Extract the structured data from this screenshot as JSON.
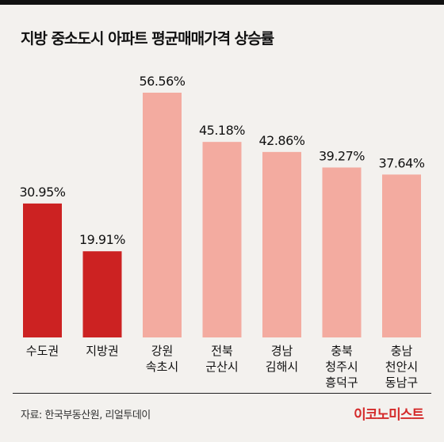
{
  "chart_data": {
    "type": "bar",
    "title": "지방 중소도시 아파트 평균매매가격 상승률",
    "categories": [
      [
        "수도권"
      ],
      [
        "지방권"
      ],
      [
        "강원",
        "속초시"
      ],
      [
        "전북",
        "군산시"
      ],
      [
        "경남",
        "김해시"
      ],
      [
        "충북",
        "청주시",
        "흥덕구"
      ],
      [
        "충남",
        "천안시",
        "동남구"
      ]
    ],
    "values": [
      30.95,
      19.91,
      56.56,
      45.18,
      42.86,
      39.27,
      37.64
    ],
    "value_labels": [
      "30.95%",
      "19.91%",
      "56.56%",
      "45.18%",
      "42.86%",
      "39.27%",
      "37.64%"
    ],
    "unit": "%",
    "ylim": [
      0,
      70
    ],
    "grid": false,
    "colors": {
      "highlight": "#cc2222",
      "normal": "#f3aba0"
    },
    "bar_color_keys": [
      "highlight",
      "highlight",
      "normal",
      "normal",
      "normal",
      "normal",
      "normal"
    ]
  },
  "footer": {
    "source": "자료: 한국부동산원, 리얼투데이",
    "brand": "이코노미스트"
  }
}
